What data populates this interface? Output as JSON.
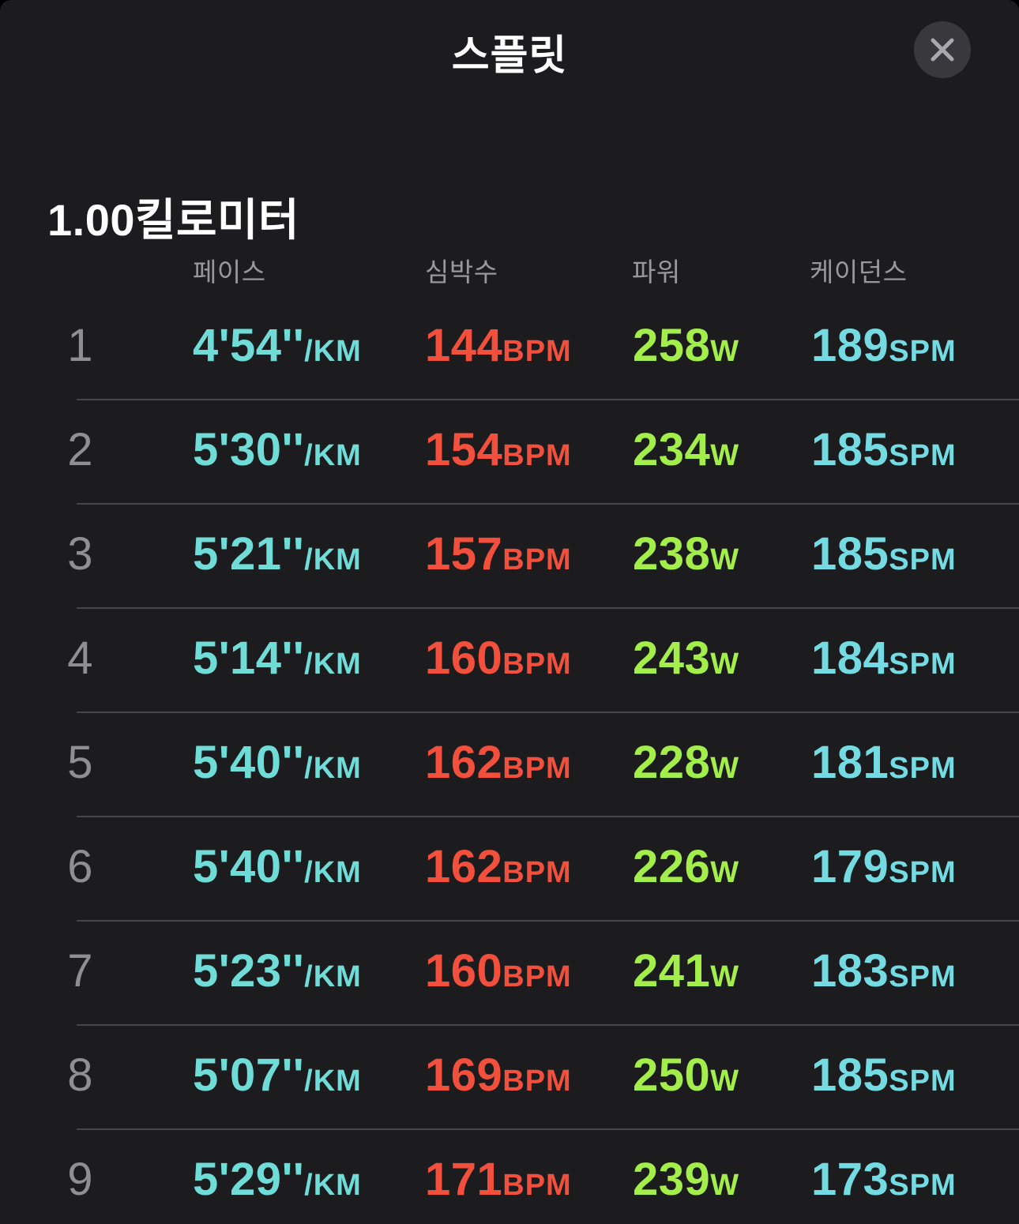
{
  "modal": {
    "title": "스플릿"
  },
  "section": {
    "distance_label": "1.00킬로미터"
  },
  "table": {
    "headers": {
      "pace": "페이스",
      "heart_rate": "심박수",
      "power": "파워",
      "cadence": "케이던스"
    },
    "units": {
      "pace": "/KM",
      "heart_rate": "BPM",
      "power": "W",
      "cadence": "SPM"
    },
    "rows": [
      {
        "index": "1",
        "pace": "4'54''",
        "heart_rate": "144",
        "power": "258",
        "cadence": "189"
      },
      {
        "index": "2",
        "pace": "5'30''",
        "heart_rate": "154",
        "power": "234",
        "cadence": "185"
      },
      {
        "index": "3",
        "pace": "5'21''",
        "heart_rate": "157",
        "power": "238",
        "cadence": "185"
      },
      {
        "index": "4",
        "pace": "5'14''",
        "heart_rate": "160",
        "power": "243",
        "cadence": "184"
      },
      {
        "index": "5",
        "pace": "5'40''",
        "heart_rate": "162",
        "power": "228",
        "cadence": "181"
      },
      {
        "index": "6",
        "pace": "5'40''",
        "heart_rate": "162",
        "power": "226",
        "cadence": "179"
      },
      {
        "index": "7",
        "pace": "5'23''",
        "heart_rate": "160",
        "power": "241",
        "cadence": "183"
      },
      {
        "index": "8",
        "pace": "5'07''",
        "heart_rate": "169",
        "power": "250",
        "cadence": "185"
      },
      {
        "index": "9",
        "pace": "5'29''",
        "heart_rate": "171",
        "power": "239",
        "cadence": "173"
      }
    ]
  },
  "colors": {
    "background": "#1c1c1e",
    "pace": "#6fdcd7",
    "heart_rate": "#f2503c",
    "power": "#a3ee4b",
    "cadence": "#73dbe1",
    "header_text": "#98989d",
    "index_text": "#8e8e93",
    "separator": "#46464a",
    "close_button_bg": "#39393d",
    "close_button_x": "#a8a8ae"
  }
}
